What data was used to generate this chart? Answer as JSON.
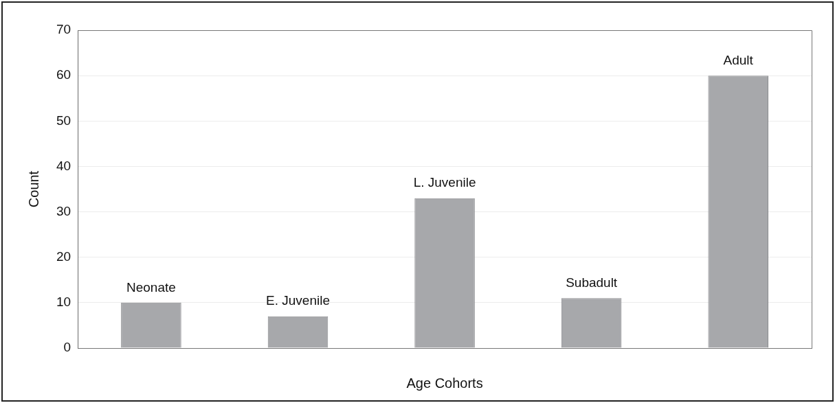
{
  "chart_data": {
    "type": "bar",
    "xlabel": "Age Cohorts",
    "ylabel": "Count",
    "categories": [
      "Neonate",
      "E. Juvenile",
      "L. Juvenile",
      "Subadult",
      "Adult"
    ],
    "values": [
      10,
      7,
      33,
      11,
      60
    ],
    "color": "#a7a8ab",
    "ylim": [
      0,
      70
    ],
    "yticks": [
      0,
      10,
      20,
      30,
      40,
      50,
      60,
      70
    ],
    "grid": "y",
    "legend": false
  }
}
